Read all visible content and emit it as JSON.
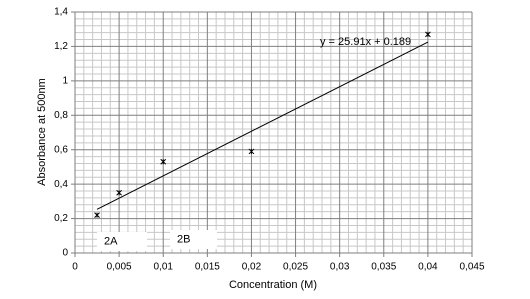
{
  "chart_data": {
    "type": "scatter",
    "x_label": "Concentration (M)",
    "y_label": "Absorbance at 500nm",
    "x": [
      0.0025,
      0.005,
      0.01,
      0.02,
      0.04
    ],
    "values": [
      0.22,
      0.35,
      0.53,
      0.59,
      1.27
    ],
    "color": "#000000",
    "trendline": {
      "slope": 25.91,
      "intercept": 0.189,
      "label": "y = 25.91x + 0.189"
    },
    "annotations": [
      "2A",
      "2B"
    ],
    "xlim": [
      0,
      0.045
    ],
    "xticks": [
      0,
      {
        "value": 0.005,
        "label": "0,005"
      },
      {
        "value": 0.01,
        "label": "0,01"
      },
      {
        "value": 0.015,
        "label": "0,015"
      },
      {
        "value": 0.02,
        "label": "0,02"
      },
      {
        "value": 0.025,
        "label": "0,025"
      },
      {
        "value": 0.03,
        "label": "0,03"
      },
      {
        "value": 0.035,
        "label": "0,035"
      },
      {
        "value": 0.04,
        "label": "0,04"
      },
      {
        "value": 0.045,
        "label": "0,045"
      }
    ],
    "ylim": [
      0,
      1.4
    ],
    "yticks": [
      0,
      {
        "value": 0.2,
        "label": "0,2"
      },
      {
        "value": 0.4,
        "label": "0,4"
      },
      {
        "value": 0.6,
        "label": "0,6"
      },
      {
        "value": 0.8,
        "label": "0,8"
      },
      {
        "value": 1,
        "label": "1"
      },
      {
        "value": 1.2,
        "label": "1,2"
      },
      {
        "value": 1.4,
        "label": "1,4"
      }
    ],
    "grid": true,
    "minor_grid": 5
  }
}
